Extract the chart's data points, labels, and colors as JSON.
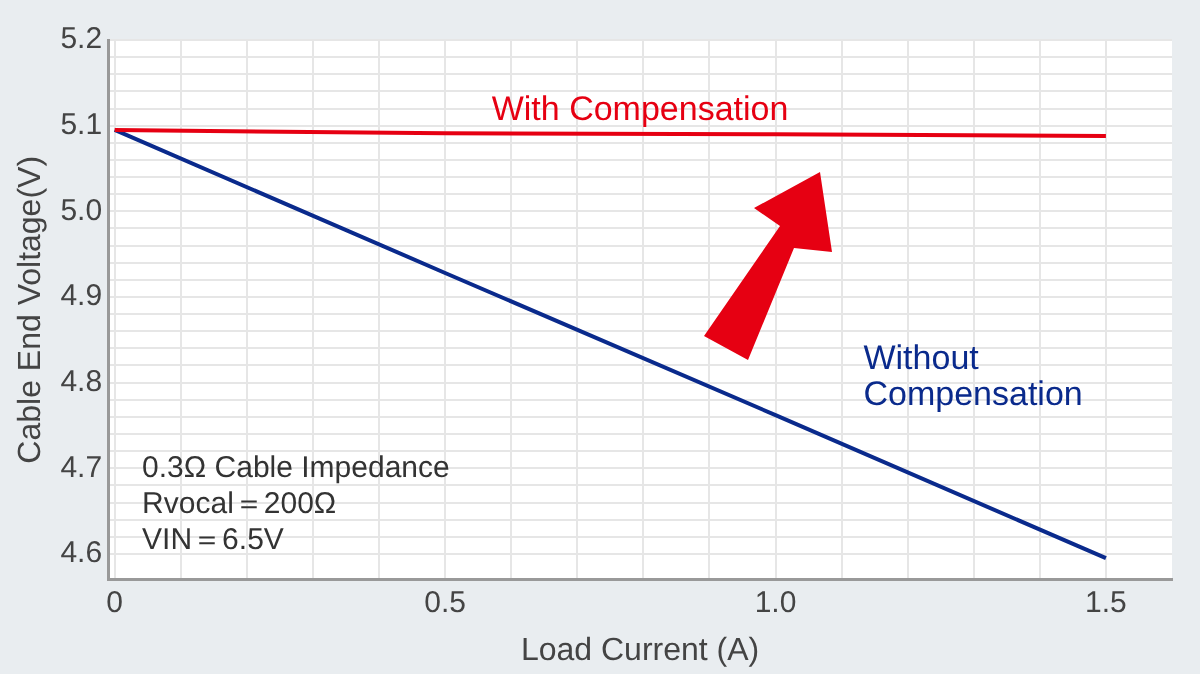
{
  "chart_data": {
    "type": "line",
    "xlabel": "Load Current (A)",
    "ylabel": "Cable End Voltage(V)",
    "x": [
      0,
      0.5,
      1.0,
      1.5
    ],
    "series": [
      {
        "name": "With Compensation",
        "color": "#e60012",
        "values": [
          5.095,
          5.091,
          5.09,
          5.088
        ]
      },
      {
        "name": "Without Compensation",
        "color": "#0a2a8c",
        "values": [
          5.095,
          4.928,
          4.762,
          4.595
        ]
      }
    ],
    "xlim": [
      -0.01,
      1.6
    ],
    "xticks": [
      0,
      {
        "value": 0.1,
        "label": null
      },
      {
        "value": 0.2,
        "label": null
      },
      {
        "value": 0.3,
        "label": null
      },
      {
        "value": 0.4,
        "label": null
      },
      {
        "value": 0.5,
        "label": "0.5"
      },
      {
        "value": 0.6,
        "label": null
      },
      {
        "value": 0.7,
        "label": null
      },
      {
        "value": 0.8,
        "label": null
      },
      {
        "value": 0.9,
        "label": null
      },
      {
        "value": 1.0,
        "label": "1.0"
      },
      {
        "value": 1.1,
        "label": null
      },
      {
        "value": 1.2,
        "label": null
      },
      {
        "value": 1.3,
        "label": null
      },
      {
        "value": 1.4,
        "label": null
      },
      {
        "value": 1.5,
        "label": "1.5"
      }
    ],
    "ylim": [
      4.57,
      5.2
    ],
    "yticks": [
      {
        "value": 4.6,
        "label": "4.6"
      },
      {
        "value": 4.62,
        "label": null
      },
      {
        "value": 4.64,
        "label": null
      },
      {
        "value": 4.66,
        "label": null
      },
      {
        "value": 4.68,
        "label": null
      },
      {
        "value": 4.7,
        "label": "4.7"
      },
      {
        "value": 4.72,
        "label": null
      },
      {
        "value": 4.74,
        "label": null
      },
      {
        "value": 4.76,
        "label": null
      },
      {
        "value": 4.78,
        "label": null
      },
      {
        "value": 4.8,
        "label": "4.8"
      },
      {
        "value": 4.82,
        "label": null
      },
      {
        "value": 4.84,
        "label": null
      },
      {
        "value": 4.86,
        "label": null
      },
      {
        "value": 4.88,
        "label": null
      },
      {
        "value": 4.9,
        "label": "4.9"
      },
      {
        "value": 4.92,
        "label": null
      },
      {
        "value": 4.94,
        "label": null
      },
      {
        "value": 4.96,
        "label": null
      },
      {
        "value": 4.98,
        "label": null
      },
      {
        "value": 5.0,
        "label": "5.0"
      },
      {
        "value": 5.02,
        "label": null
      },
      {
        "value": 5.04,
        "label": null
      },
      {
        "value": 5.06,
        "label": null
      },
      {
        "value": 5.08,
        "label": null
      },
      {
        "value": 5.1,
        "label": "5.1"
      },
      {
        "value": 5.12,
        "label": null
      },
      {
        "value": 5.14,
        "label": null
      },
      {
        "value": 5.16,
        "label": null
      },
      {
        "value": 5.18,
        "label": null
      },
      {
        "value": 5.2,
        "label": "5.2"
      }
    ],
    "annotations": [
      "0.3Ω Cable Impedance",
      "Rvocal＝200Ω",
      "VIN＝6.5V"
    ],
    "grid": true,
    "legend": false,
    "marker": "none",
    "line_style": "solid"
  }
}
